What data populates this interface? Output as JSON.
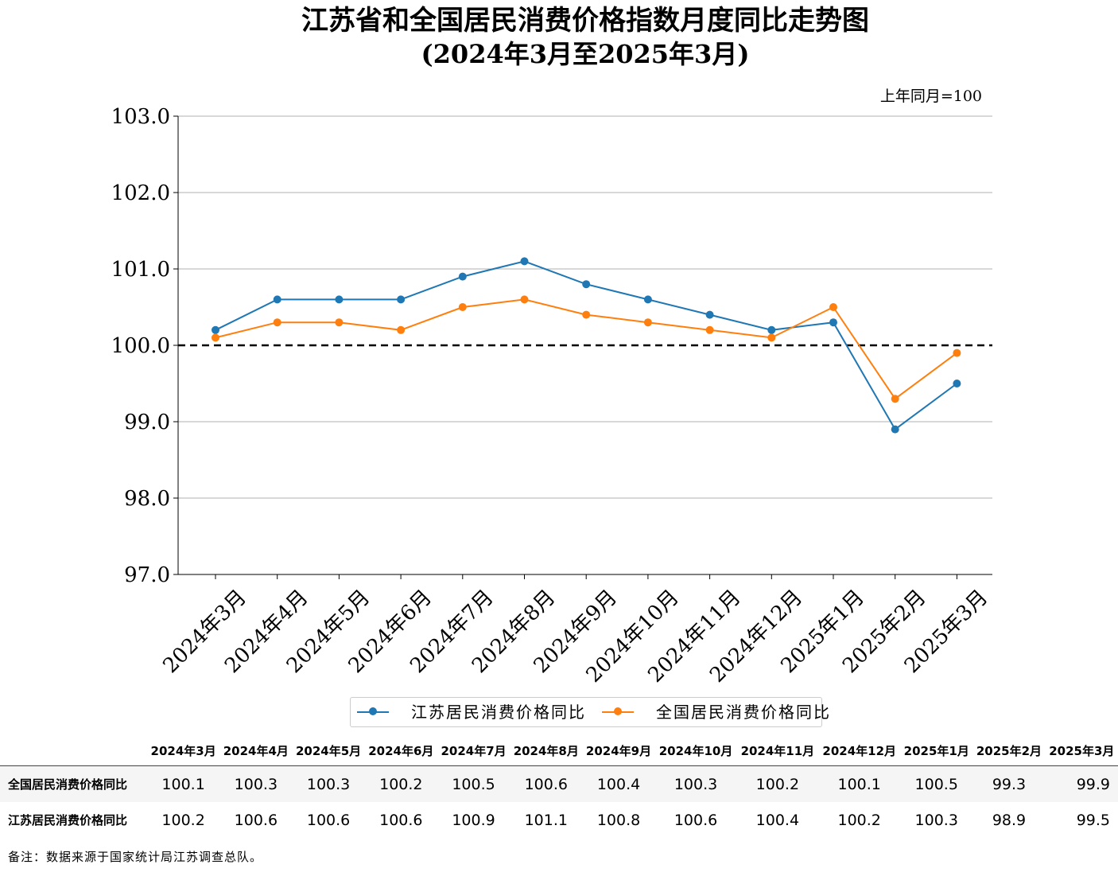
{
  "title": "江苏省和全国居民消费价格指数月度同比走势图",
  "subtitle": "(2024年3月至2025年3月)",
  "unit_note": "上年同月=100",
  "source_note": "备注：数据来源于国家统计局江苏调查总队。",
  "chart_data": {
    "type": "line",
    "categories": [
      "2024年3月",
      "2024年4月",
      "2024年5月",
      "2024年6月",
      "2024年7月",
      "2024年8月",
      "2024年9月",
      "2024年10月",
      "2024年11月",
      "2024年12月",
      "2025年1月",
      "2025年2月",
      "2025年3月"
    ],
    "series": [
      {
        "name": "江苏居民消费价格同比",
        "color": "#1f77b4",
        "values": [
          100.2,
          100.6,
          100.6,
          100.6,
          100.9,
          101.1,
          100.8,
          100.6,
          100.4,
          100.2,
          100.3,
          98.9,
          99.5
        ]
      },
      {
        "name": "全国居民消费价格同比",
        "color": "#ff7f0e",
        "values": [
          100.1,
          100.3,
          100.3,
          100.2,
          100.5,
          100.6,
          100.4,
          100.3,
          100.2,
          100.1,
          100.5,
          99.3,
          99.9
        ]
      }
    ],
    "ylim": [
      97.0,
      103.0
    ],
    "yticks": [
      "97.0",
      "98.0",
      "99.0",
      "100.0",
      "101.0",
      "102.0",
      "103.0"
    ],
    "reference_line": 100.0,
    "grid": "horizontal",
    "legend_position": "bottom-center"
  },
  "table": {
    "headers": [
      "2024年3月",
      "2024年4月",
      "2024年5月",
      "2024年6月",
      "2024年7月",
      "2024年8月",
      "2024年9月",
      "2024年10月",
      "2024年11月",
      "2024年12月",
      "2025年1月",
      "2025年2月",
      "2025年3月"
    ],
    "rows": [
      {
        "label": "全国居民消费价格同比",
        "values": [
          "100.1",
          "100.3",
          "100.3",
          "100.2",
          "100.5",
          "100.6",
          "100.4",
          "100.3",
          "100.2",
          "100.1",
          "100.5",
          "99.3",
          "99.9"
        ]
      },
      {
        "label": "江苏居民消费价格同比",
        "values": [
          "100.2",
          "100.6",
          "100.6",
          "100.6",
          "100.9",
          "101.1",
          "100.8",
          "100.6",
          "100.4",
          "100.2",
          "100.3",
          "98.9",
          "99.5"
        ]
      }
    ]
  }
}
